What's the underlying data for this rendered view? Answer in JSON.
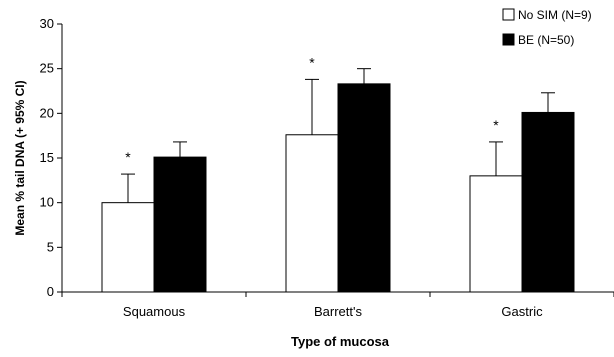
{
  "chart_data": {
    "type": "bar",
    "title": "",
    "xlabel": "Type of mucosa",
    "ylabel": "Mean % tail DNA (+ 95% CI)",
    "ylim": [
      0,
      30
    ],
    "yticks": [
      "0",
      "5",
      "10",
      "15",
      "20",
      "25",
      "30"
    ],
    "categories": [
      "Squamous",
      "Barrett's",
      "Gastric"
    ],
    "grid": false,
    "legend_position": "top-right",
    "series": [
      {
        "name": "No SIM (N=9)",
        "color": "#ffffff",
        "values": [
          10.0,
          17.6,
          13.0
        ],
        "ci_upper": [
          13.2,
          23.8,
          16.8
        ]
      },
      {
        "name": "BE (N=50)",
        "color": "#000000",
        "values": [
          15.1,
          23.3,
          20.1
        ],
        "ci_upper": [
          16.8,
          25.0,
          22.3
        ]
      }
    ],
    "annotations": [
      {
        "text": "*",
        "category": "Squamous",
        "series": "No SIM (N=9)"
      },
      {
        "text": "*",
        "category": "Barrett's",
        "series": "No SIM (N=9)"
      },
      {
        "text": "*",
        "category": "Gastric",
        "series": "No SIM (N=9)"
      }
    ]
  }
}
